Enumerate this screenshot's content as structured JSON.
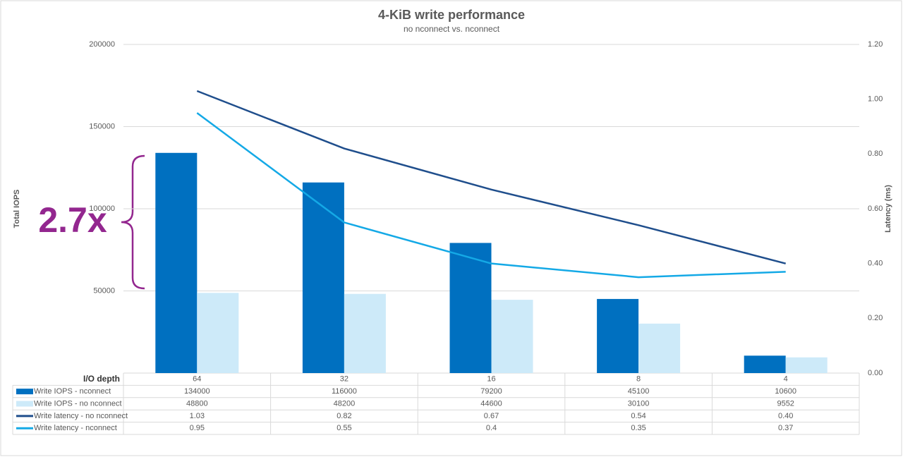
{
  "chart_data": {
    "type": "bar-line",
    "title": "4-KiB write performance",
    "subtitle": "no nconnect vs. nconnect",
    "y_label": "Total IOPS",
    "y2_label": "Latency (ms)",
    "x_label": "I/O depth",
    "annotation": "2.7x",
    "categories": [
      "64",
      "32",
      "16",
      "8",
      "4"
    ],
    "ylim": [
      0,
      200000
    ],
    "yticks": [
      50000,
      100000,
      150000,
      200000
    ],
    "y2lim": [
      0,
      1.2
    ],
    "y2ticks": [
      {
        "value": 0,
        "label": "0.00"
      },
      {
        "value": 0.2,
        "label": "0.20"
      },
      {
        "value": 0.4,
        "label": "0.40"
      },
      {
        "value": 0.6,
        "label": "0.60"
      },
      {
        "value": 0.8,
        "label": "0.80"
      },
      {
        "value": 1.0,
        "label": "1.00"
      },
      {
        "value": 1.2,
        "label": "1.20"
      }
    ],
    "grid": true,
    "series": [
      {
        "name": "Write IOPS - nconnect",
        "kind": "bar",
        "color": "#0070c0",
        "values": [
          134000,
          116000,
          79200,
          45100,
          10600
        ]
      },
      {
        "name": "Write IOPS - no nconnect",
        "kind": "bar",
        "color": "#cdeaf9",
        "values": [
          48800,
          48200,
          44600,
          30100,
          9552
        ]
      },
      {
        "name": "Write latency - no nconnect",
        "kind": "line",
        "axis": "y2",
        "color": "#1f4e8c",
        "values": [
          1.03,
          0.82,
          0.67,
          0.54,
          0.4
        ],
        "value_labels": [
          "1.03",
          "0.82",
          "0.67",
          "0.54",
          "0.40"
        ]
      },
      {
        "name": "Write latency - nconnect",
        "kind": "line",
        "axis": "y2",
        "color": "#14a9e6",
        "values": [
          0.95,
          0.55,
          0.4,
          0.35,
          0.37
        ]
      }
    ]
  }
}
